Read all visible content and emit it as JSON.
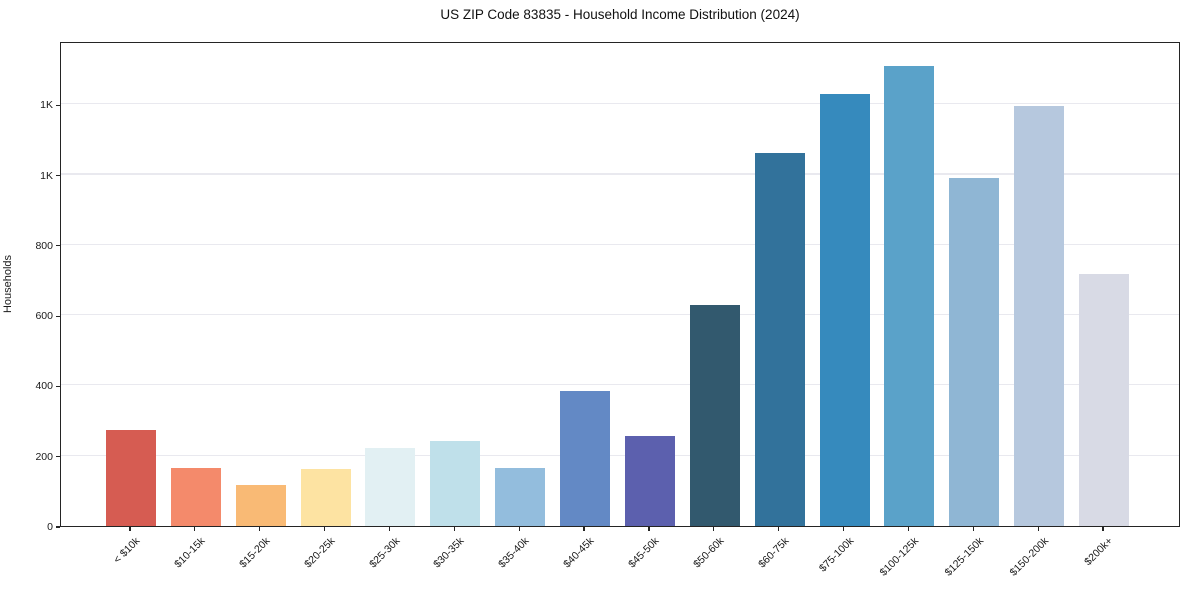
{
  "chart_data": {
    "type": "bar",
    "title": "US ZIP Code 83835 - Household Income Distribution (2024)",
    "xlabel": "",
    "ylabel": "Households",
    "categories": [
      "< $10k",
      "$10-15k",
      "$15-20k",
      "$20-25k",
      "$25-30k",
      "$30-35k",
      "$35-40k",
      "$40-45k",
      "$45-50k",
      "$50-60k",
      "$60-75k",
      "$75-100k",
      "$100-125k",
      "$125-150k",
      "$150-200k",
      "$200k+"
    ],
    "values": [
      272,
      166,
      118,
      161,
      221,
      242,
      166,
      384,
      256,
      628,
      1062,
      1228,
      1310,
      989,
      1196,
      716
    ],
    "bar_colors": [
      "#d65c52",
      "#f48a6b",
      "#f9ba75",
      "#fde3a2",
      "#e2f0f3",
      "#bfe0ea",
      "#93bddd",
      "#6389c5",
      "#5c60ae",
      "#32596e",
      "#32729b",
      "#368abd",
      "#5aa2c9",
      "#8fb6d4",
      "#b6c8de",
      "#d8dae5"
    ],
    "y_axis": {
      "min": 0,
      "max": 1380,
      "ticks": [
        {
          "value": 0,
          "label": "0"
        },
        {
          "value": 200,
          "label": "200"
        },
        {
          "value": 400,
          "label": "400"
        },
        {
          "value": 600,
          "label": "600"
        },
        {
          "value": 800,
          "label": "800"
        },
        {
          "value": 1000,
          "label": "1K"
        },
        {
          "value": 1200,
          "label": "1K"
        }
      ]
    },
    "grid": true,
    "legend": false
  }
}
